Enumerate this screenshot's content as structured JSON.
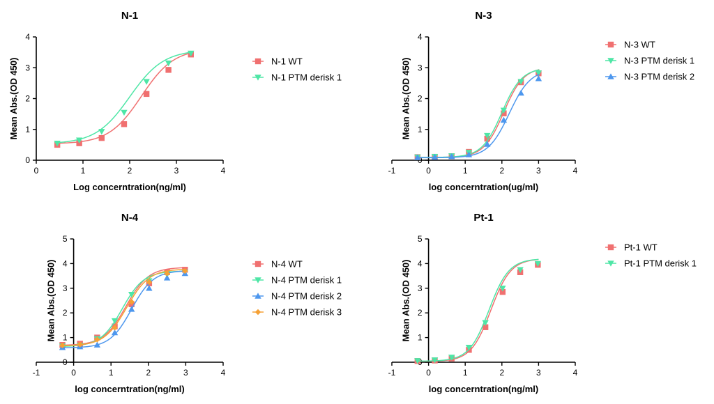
{
  "colors": {
    "red": "#f07070",
    "green": "#4ee6a6",
    "blue": "#4d97ee",
    "orange": "#f6a135"
  },
  "chart_data": [
    {
      "type": "line",
      "title": "N-1",
      "xlabel": "Log concerntration(ng/ml)",
      "ylabel": "Mean Abs.(OD 450)",
      "xlim": [
        0,
        4
      ],
      "ylim": [
        0,
        4
      ],
      "xticks": [
        0,
        1,
        2,
        3,
        4
      ],
      "yticks": [
        0,
        1,
        2,
        3,
        4
      ],
      "legend_position": "right",
      "series": [
        {
          "name": "N-1 WT",
          "color": "red",
          "marker": "square",
          "x": [
            0.45,
            0.92,
            1.4,
            1.88,
            2.36,
            2.83,
            3.31
          ],
          "y": [
            0.5,
            0.55,
            0.72,
            1.17,
            2.15,
            2.93,
            3.43
          ],
          "curve": {
            "bottom": 0.53,
            "top": 3.62,
            "ec50": 2.25,
            "hill": 1.25
          }
        },
        {
          "name": "N-1 PTM derisk 1",
          "color": "green",
          "marker": "triangle-down",
          "x": [
            0.45,
            0.92,
            1.4,
            1.88,
            2.36,
            2.83,
            3.31
          ],
          "y": [
            0.55,
            0.65,
            0.93,
            1.55,
            2.55,
            3.15,
            3.47
          ],
          "curve": {
            "bottom": 0.53,
            "top": 3.58,
            "ec50": 2.0,
            "hill": 1.2
          }
        }
      ]
    },
    {
      "type": "line",
      "title": "N-3",
      "xlabel": "log concerntration(ug/ml)",
      "ylabel": "Mean Abs.(OD 450)",
      "xlim": [
        -1,
        4
      ],
      "ylim": [
        0,
        4
      ],
      "xticks": [
        -1,
        0,
        1,
        2,
        3,
        4
      ],
      "yticks": [
        0,
        1,
        2,
        3,
        4
      ],
      "legend_position": "right",
      "series": [
        {
          "name": "N-3 WT",
          "color": "red",
          "marker": "square",
          "x": [
            -0.3,
            0.17,
            0.63,
            1.1,
            1.6,
            2.05,
            2.52,
            3.0
          ],
          "y": [
            0.1,
            0.11,
            0.13,
            0.27,
            0.7,
            1.52,
            2.53,
            2.82
          ],
          "curve": {
            "bottom": 0.09,
            "top": 3.02,
            "ec50": 2.05,
            "hill": 1.6
          }
        },
        {
          "name": "N-3 PTM derisk 1",
          "color": "green",
          "marker": "triangle-down",
          "x": [
            -0.3,
            0.17,
            0.63,
            1.1,
            1.6,
            2.05,
            2.52,
            3.0
          ],
          "y": [
            0.1,
            0.12,
            0.14,
            0.25,
            0.8,
            1.62,
            2.55,
            2.83
          ],
          "curve": {
            "bottom": 0.09,
            "top": 3.0,
            "ec50": 2.0,
            "hill": 1.6
          }
        },
        {
          "name": "N-3 PTM derisk 2",
          "color": "blue",
          "marker": "triangle-up",
          "x": [
            -0.3,
            0.17,
            0.63,
            1.1,
            1.6,
            2.05,
            2.52,
            3.0
          ],
          "y": [
            0.09,
            0.1,
            0.12,
            0.18,
            0.52,
            1.3,
            2.18,
            2.65
          ],
          "curve": {
            "bottom": 0.08,
            "top": 2.95,
            "ec50": 2.2,
            "hill": 1.5
          }
        }
      ]
    },
    {
      "type": "line",
      "title": "N-4",
      "xlabel": "log concerntration(ng/ml)",
      "ylabel": "Mean Abs.(OD 450)",
      "xlim": [
        -1,
        4
      ],
      "ylim": [
        0,
        5
      ],
      "xticks": [
        -1,
        0,
        1,
        2,
        3,
        4
      ],
      "yticks": [
        0,
        1,
        2,
        3,
        4,
        5
      ],
      "legend_position": "right",
      "series": [
        {
          "name": "N-4 WT",
          "color": "red",
          "marker": "square",
          "x": [
            -0.3,
            0.17,
            0.63,
            1.1,
            1.55,
            2.02,
            2.5,
            2.98
          ],
          "y": [
            0.7,
            0.75,
            1.0,
            1.45,
            2.35,
            3.2,
            3.65,
            3.75
          ],
          "curve": {
            "bottom": 0.68,
            "top": 3.85,
            "ec50": 1.4,
            "hill": 1.45
          }
        },
        {
          "name": "N-4 PTM derisk 1",
          "color": "green",
          "marker": "triangle-down",
          "x": [
            -0.3,
            0.17,
            0.63,
            1.1,
            1.55,
            2.02,
            2.5,
            2.98
          ],
          "y": [
            0.65,
            0.68,
            0.95,
            1.68,
            2.75,
            3.3,
            3.55,
            3.65
          ],
          "curve": {
            "bottom": 0.63,
            "top": 3.7,
            "ec50": 1.3,
            "hill": 1.5
          }
        },
        {
          "name": "N-4 PTM derisk 2",
          "color": "blue",
          "marker": "triangle-up",
          "x": [
            -0.3,
            0.17,
            0.63,
            1.1,
            1.55,
            2.02,
            2.5,
            2.98
          ],
          "y": [
            0.6,
            0.63,
            0.7,
            1.2,
            2.15,
            3.0,
            3.42,
            3.6
          ],
          "curve": {
            "bottom": 0.58,
            "top": 3.72,
            "ec50": 1.55,
            "hill": 1.5
          }
        },
        {
          "name": "N-4 PTM derisk 3",
          "color": "orange",
          "marker": "diamond",
          "x": [
            -0.3,
            0.17,
            0.63,
            1.1,
            1.55,
            2.02,
            2.5,
            2.98
          ],
          "y": [
            0.68,
            0.72,
            0.92,
            1.4,
            2.45,
            3.25,
            3.6,
            3.7
          ],
          "curve": {
            "bottom": 0.66,
            "top": 3.78,
            "ec50": 1.42,
            "hill": 1.45
          }
        }
      ]
    },
    {
      "type": "line",
      "title": "Pt-1",
      "xlabel": "log concerntration(ng/ml)",
      "ylabel": "Mean Abs.(OD 450)",
      "xlim": [
        -1,
        4
      ],
      "ylim": [
        0,
        5
      ],
      "xticks": [
        -1,
        0,
        1,
        2,
        3,
        4
      ],
      "yticks": [
        0,
        1,
        2,
        3,
        4,
        5
      ],
      "legend_position": "right",
      "series": [
        {
          "name": "Pt-1 WT",
          "color": "red",
          "marker": "square",
          "x": [
            -0.3,
            0.17,
            0.63,
            1.1,
            1.55,
            2.02,
            2.5,
            2.98
          ],
          "y": [
            0.05,
            0.07,
            0.15,
            0.5,
            1.42,
            2.85,
            3.65,
            3.95
          ],
          "curve": {
            "bottom": 0.03,
            "top": 4.2,
            "ec50": 1.7,
            "hill": 1.6
          }
        },
        {
          "name": "Pt-1 PTM derisk 1",
          "color": "green",
          "marker": "triangle-down",
          "x": [
            -0.3,
            0.17,
            0.63,
            1.1,
            1.55,
            2.02,
            2.5,
            2.98
          ],
          "y": [
            0.06,
            0.09,
            0.2,
            0.6,
            1.6,
            3.0,
            3.75,
            4.0
          ],
          "curve": {
            "bottom": 0.04,
            "top": 4.2,
            "ec50": 1.65,
            "hill": 1.6
          }
        }
      ]
    }
  ]
}
